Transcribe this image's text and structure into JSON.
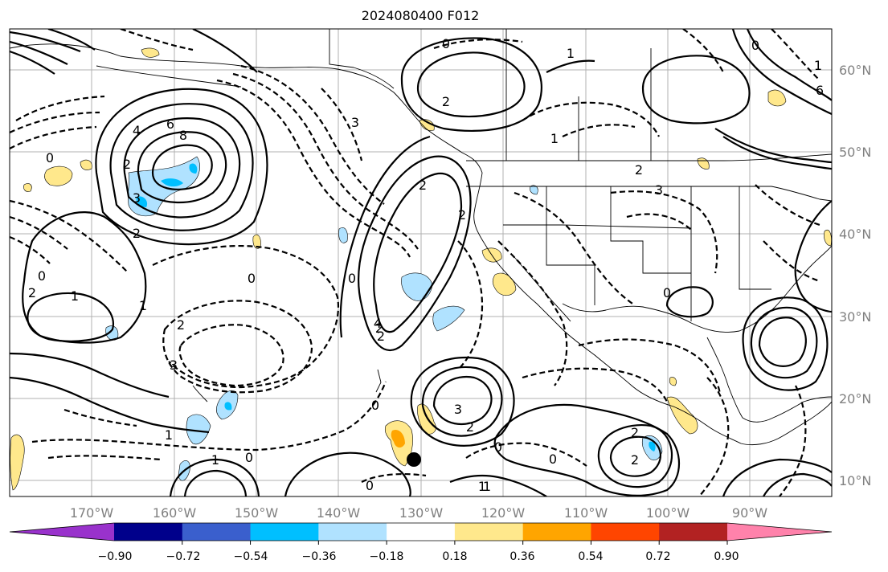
{
  "title": "2024080400 F012",
  "lon_labels": [
    "170°W",
    "160°W",
    "150°W",
    "140°W",
    "130°W",
    "120°W",
    "110°W",
    "100°W",
    "90°W"
  ],
  "lat_labels": [
    "60°N",
    "50°N",
    "40°N",
    "30°N",
    "20°N",
    "10°N"
  ],
  "colorbar": {
    "colors": [
      "#9932cc",
      "#00008b",
      "#3a5fcd",
      "#00bfff",
      "#b0e2ff",
      "#ffffff",
      "#ffe88c",
      "#ffa500",
      "#ff4500",
      "#b22222",
      "#ff82ab"
    ],
    "ticks": [
      "−0.90",
      "−0.72",
      "−0.54",
      "−0.36",
      "−0.18",
      "0.18",
      "0.36",
      "0.54",
      "0.72",
      "0.90"
    ]
  },
  "contour_labels": [
    {
      "t": "6"
    },
    {
      "t": "8"
    },
    {
      "t": "4"
    },
    {
      "t": "3"
    },
    {
      "t": "2"
    },
    {
      "t": "0"
    },
    {
      "t": "0"
    },
    {
      "t": "2"
    },
    {
      "t": "1"
    },
    {
      "t": "2"
    },
    {
      "t": "0"
    },
    {
      "t": "2"
    },
    {
      "t": "3"
    },
    {
      "t": "1"
    },
    {
      "t": "1"
    },
    {
      "t": "0"
    },
    {
      "t": "0"
    },
    {
      "t": "1"
    },
    {
      "t": "0"
    },
    {
      "t": "2"
    },
    {
      "t": "2"
    },
    {
      "t": "3"
    },
    {
      "t": "2"
    },
    {
      "t": "0"
    },
    {
      "t": "1"
    },
    {
      "t": "0"
    },
    {
      "t": "2"
    },
    {
      "t": "2"
    },
    {
      "t": "2"
    },
    {
      "t": "3"
    },
    {
      "t": "2"
    },
    {
      "t": "1"
    },
    {
      "t": "0"
    },
    {
      "t": "2"
    },
    {
      "t": "1"
    },
    {
      "t": "0"
    },
    {
      "t": "0"
    },
    {
      "t": "4"
    },
    {
      "t": "2"
    },
    {
      "t": "3"
    },
    {
      "t": "1"
    },
    {
      "t": "6"
    },
    {
      "t": "0"
    },
    {
      "t": "1"
    }
  ]
}
